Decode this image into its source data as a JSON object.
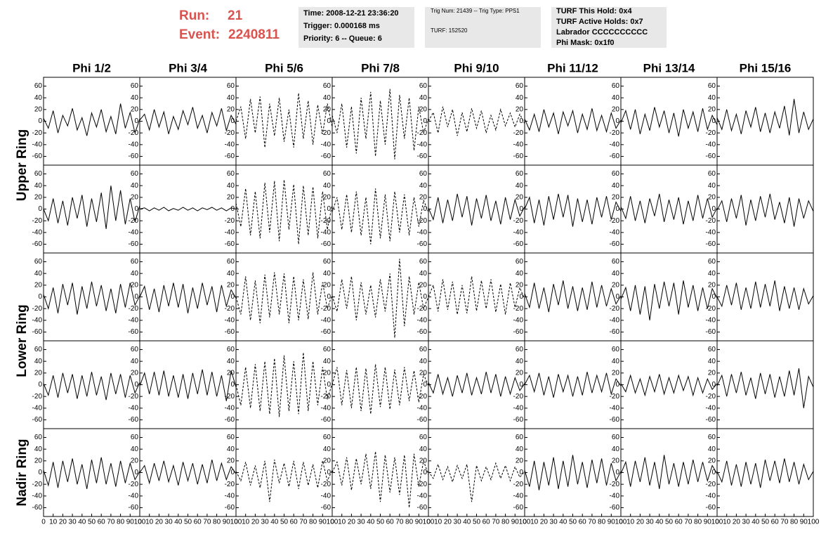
{
  "header": {
    "run_label": "Run:",
    "run": "21",
    "event_label": "Event:",
    "event": "2240811",
    "box1": [
      "Time: 2008-12-21 23:36:20",
      "Trigger: 0.000168 ms",
      "Priority: 6 -- Queue: 6"
    ],
    "box2": [
      "Trig Num: 21439 -- Trig Type: PPS1",
      "TURF: 152520"
    ],
    "box3": [
      "TURF This Hold: 0x4",
      "TURF Active Holds: 0x7",
      "Labrador CCCCCCCCCC",
      "Phi Mask: 0x1f0"
    ]
  },
  "chart_data": {
    "type": "line",
    "columns": [
      "Phi 1/2",
      "Phi 3/4",
      "Phi 5/6",
      "Phi 7/8",
      "Phi 9/10",
      "Phi 11/12",
      "Phi 13/14",
      "Phi 15/16"
    ],
    "ring_labels": [
      "Upper Ring",
      "Lower Ring",
      "Nadir Ring"
    ],
    "xlim": [
      0,
      100
    ],
    "ylim": [
      -75,
      75
    ],
    "xticks": [
      0,
      10,
      20,
      30,
      40,
      50,
      60,
      70,
      80,
      90,
      100
    ],
    "yticks": [
      -60,
      -40,
      -20,
      0,
      20,
      40,
      60
    ],
    "x": [
      0,
      5,
      10,
      15,
      20,
      25,
      30,
      35,
      40,
      45,
      50,
      55,
      60,
      65,
      70,
      75,
      80,
      85,
      90,
      95,
      100
    ],
    "color": "#000000",
    "series": [
      {
        "values": [
          5,
          -12,
          18,
          -20,
          10,
          -8,
          22,
          -15,
          6,
          -25,
          14,
          -10,
          20,
          -18,
          8,
          -22,
          30,
          -12,
          15,
          -20,
          4
        ],
        "dashed": false
      },
      {
        "values": [
          2,
          12,
          -15,
          20,
          -10,
          16,
          -22,
          8,
          -14,
          18,
          -6,
          24,
          -12,
          10,
          -20,
          15,
          -8,
          22,
          -16,
          10,
          -5
        ],
        "dashed": false
      },
      {
        "values": [
          0,
          25,
          -30,
          38,
          -20,
          42,
          -45,
          30,
          -25,
          40,
          -35,
          20,
          -45,
          48,
          -30,
          35,
          -40,
          28,
          -22,
          30,
          -10
        ],
        "dashed": true
      },
      {
        "values": [
          10,
          -20,
          30,
          -45,
          25,
          -55,
          40,
          -30,
          50,
          -60,
          35,
          -40,
          55,
          -65,
          45,
          -30,
          40,
          -50,
          25,
          -20,
          5
        ],
        "dashed": true
      },
      {
        "values": [
          0,
          15,
          -20,
          25,
          -10,
          20,
          -25,
          15,
          -18,
          22,
          -12,
          18,
          -20,
          10,
          -15,
          20,
          -8,
          14,
          -10,
          12,
          -4
        ],
        "dashed": true
      },
      {
        "values": [
          4,
          -15,
          12,
          -18,
          20,
          -10,
          14,
          -22,
          16,
          -8,
          18,
          -20,
          12,
          -14,
          22,
          -16,
          10,
          -18,
          14,
          -12,
          2
        ],
        "dashed": false
      },
      {
        "values": [
          -3,
          18,
          -14,
          20,
          -22,
          12,
          -16,
          24,
          -10,
          18,
          -20,
          14,
          -26,
          20,
          -12,
          16,
          -18,
          22,
          -14,
          10,
          -6
        ],
        "dashed": false
      },
      {
        "values": [
          6,
          -14,
          20,
          -16,
          12,
          -22,
          18,
          -10,
          24,
          -18,
          14,
          -20,
          16,
          -12,
          26,
          -24,
          38,
          -20,
          16,
          -14,
          4
        ],
        "dashed": false
      },
      {
        "values": [
          0,
          -20,
          18,
          -24,
          14,
          -28,
          20,
          -16,
          24,
          -30,
          18,
          -22,
          28,
          -34,
          40,
          -20,
          32,
          -26,
          18,
          -22,
          6
        ],
        "dashed": false
      },
      {
        "values": [
          0,
          2,
          -3,
          2,
          -2,
          3,
          -3,
          1,
          -2,
          3,
          -2,
          2,
          -3,
          2,
          -1,
          3,
          -2,
          2,
          -3,
          2,
          0
        ],
        "dashed": false
      },
      {
        "values": [
          10,
          -30,
          35,
          -45,
          30,
          -50,
          45,
          -40,
          48,
          -55,
          50,
          -35,
          42,
          -60,
          40,
          -45,
          38,
          -50,
          30,
          -35,
          8
        ],
        "dashed": true
      },
      {
        "values": [
          -5,
          20,
          -35,
          25,
          -40,
          30,
          -45,
          20,
          -60,
          35,
          -50,
          25,
          -55,
          30,
          -40,
          25,
          -45,
          20,
          -30,
          15,
          -5
        ],
        "dashed": true
      },
      {
        "values": [
          2,
          -18,
          20,
          -24,
          16,
          -20,
          26,
          -14,
          22,
          -28,
          18,
          -16,
          24,
          -20,
          14,
          -26,
          20,
          -18,
          16,
          -12,
          4
        ],
        "dashed": false
      },
      {
        "values": [
          0,
          20,
          -24,
          16,
          -28,
          22,
          -18,
          26,
          -14,
          24,
          -30,
          18,
          -22,
          16,
          -26,
          20,
          -14,
          22,
          -18,
          12,
          -4
        ],
        "dashed": false
      },
      {
        "values": [
          4,
          -16,
          22,
          -20,
          14,
          -24,
          18,
          -12,
          26,
          -22,
          16,
          -18,
          20,
          -26,
          14,
          -20,
          24,
          -16,
          18,
          -14,
          2
        ],
        "dashed": false
      },
      {
        "values": [
          -2,
          14,
          -22,
          18,
          -16,
          24,
          -28,
          16,
          -20,
          22,
          -14,
          26,
          -18,
          12,
          -24,
          20,
          -30,
          18,
          -16,
          14,
          -4
        ],
        "dashed": false
      },
      {
        "values": [
          4,
          -20,
          16,
          -28,
          22,
          -14,
          24,
          -30,
          18,
          -20,
          26,
          -16,
          20,
          -24,
          14,
          -28,
          22,
          -18,
          24,
          -14,
          2
        ],
        "dashed": false
      },
      {
        "values": [
          0,
          18,
          -22,
          14,
          -26,
          20,
          -16,
          24,
          -18,
          22,
          -28,
          16,
          -20,
          24,
          -14,
          18,
          -26,
          20,
          -16,
          12,
          -2
        ],
        "dashed": false
      },
      {
        "values": [
          0,
          -30,
          35,
          -40,
          28,
          -45,
          38,
          -35,
          42,
          -30,
          40,
          -45,
          35,
          -40,
          30,
          -38,
          42,
          -30,
          25,
          -20,
          4
        ],
        "dashed": true
      },
      {
        "values": [
          2,
          -25,
          30,
          -20,
          35,
          -40,
          25,
          -30,
          20,
          -35,
          30,
          -25,
          40,
          -70,
          65,
          -50,
          35,
          -30,
          25,
          -20,
          0
        ],
        "dashed": true
      },
      {
        "values": [
          0,
          20,
          -25,
          30,
          -22,
          26,
          -30,
          20,
          -28,
          35,
          -24,
          28,
          -20,
          30,
          -26,
          22,
          -30,
          24,
          -18,
          16,
          -4
        ],
        "dashed": true
      },
      {
        "values": [
          6,
          -18,
          24,
          -20,
          16,
          -26,
          22,
          -14,
          28,
          -20,
          18,
          -24,
          16,
          -22,
          26,
          -18,
          20,
          -16,
          14,
          -12,
          2
        ],
        "dashed": false
      },
      {
        "values": [
          -4,
          16,
          -24,
          20,
          -30,
          18,
          -40,
          22,
          -20,
          26,
          -16,
          24,
          -30,
          28,
          -18,
          20,
          -24,
          16,
          -20,
          14,
          -2
        ],
        "dashed": false
      },
      {
        "values": [
          0,
          -16,
          20,
          -14,
          24,
          -22,
          16,
          -20,
          26,
          -18,
          22,
          -16,
          28,
          -24,
          18,
          -20,
          16,
          -22,
          14,
          -12,
          2
        ],
        "dashed": false
      },
      {
        "values": [
          2,
          -18,
          16,
          -22,
          20,
          -14,
          18,
          -24,
          16,
          -20,
          22,
          -18,
          14,
          -26,
          20,
          -16,
          18,
          -22,
          16,
          -14,
          4
        ],
        "dashed": false
      },
      {
        "values": [
          -2,
          20,
          -16,
          22,
          -18,
          24,
          -20,
          16,
          -22,
          18,
          -24,
          20,
          -16,
          26,
          -18,
          22,
          -20,
          16,
          -28,
          24,
          -4
        ],
        "dashed": false
      },
      {
        "values": [
          0,
          -35,
          30,
          -40,
          35,
          -45,
          40,
          -50,
          45,
          -55,
          50,
          -45,
          40,
          -50,
          55,
          -45,
          40,
          -35,
          30,
          -25,
          2
        ],
        "dashed": true
      },
      {
        "values": [
          0,
          30,
          -35,
          25,
          -40,
          30,
          -45,
          28,
          -50,
          35,
          -38,
          30,
          -42,
          26,
          -35,
          30,
          -28,
          24,
          -30,
          18,
          -2
        ],
        "dashed": true
      },
      {
        "values": [
          4,
          -14,
          18,
          -16,
          12,
          -20,
          16,
          -14,
          20,
          -18,
          12,
          -16,
          22,
          -14,
          18,
          -20,
          14,
          -16,
          12,
          -10,
          2
        ],
        "dashed": false
      },
      {
        "values": [
          0,
          16,
          -12,
          20,
          -18,
          14,
          -22,
          18,
          -12,
          16,
          -20,
          14,
          -18,
          22,
          -14,
          16,
          -12,
          20,
          -16,
          10,
          -2
        ],
        "dashed": false
      },
      {
        "values": [
          2,
          -12,
          16,
          -14,
          10,
          -18,
          14,
          -12,
          18,
          -16,
          12,
          -14,
          16,
          -10,
          14,
          -18,
          12,
          -14,
          10,
          -8,
          2
        ],
        "dashed": false
      },
      {
        "values": [
          -2,
          16,
          -20,
          18,
          -14,
          22,
          -18,
          12,
          -24,
          20,
          -16,
          18,
          -22,
          14,
          -20,
          24,
          -18,
          28,
          -40,
          14,
          -4
        ],
        "dashed": false
      },
      {
        "values": [
          4,
          -22,
          18,
          -26,
          20,
          -16,
          24,
          -20,
          14,
          -28,
          22,
          -18,
          26,
          -20,
          16,
          -24,
          20,
          -18,
          16,
          -12,
          2
        ],
        "dashed": false
      },
      {
        "values": [
          0,
          12,
          -18,
          16,
          -14,
          20,
          -16,
          12,
          -22,
          18,
          -14,
          16,
          -20,
          14,
          -18,
          22,
          -14,
          16,
          -12,
          10,
          -2
        ],
        "dashed": false
      },
      {
        "values": [
          2,
          -14,
          18,
          -22,
          12,
          -26,
          20,
          -50,
          22,
          -18,
          16,
          -24,
          20,
          -28,
          18,
          -22,
          14,
          -26,
          20,
          -14,
          4
        ],
        "dashed": true
      },
      {
        "values": [
          0,
          18,
          -22,
          26,
          -30,
          24,
          -20,
          32,
          -28,
          36,
          -50,
          30,
          -34,
          26,
          -38,
          30,
          -60,
          32,
          -24,
          20,
          -4
        ],
        "dashed": true
      },
      {
        "values": [
          2,
          -10,
          14,
          -12,
          10,
          -16,
          12,
          -10,
          14,
          -50,
          12,
          -14,
          10,
          -12,
          16,
          -10,
          12,
          -14,
          10,
          -8,
          2
        ],
        "dashed": true
      },
      {
        "values": [
          4,
          -24,
          20,
          -30,
          18,
          -22,
          26,
          -28,
          20,
          -24,
          30,
          -20,
          18,
          -26,
          22,
          -18,
          24,
          -22,
          16,
          -14,
          2
        ],
        "dashed": false
      },
      {
        "values": [
          -2,
          18,
          -24,
          20,
          -16,
          26,
          -22,
          18,
          -28,
          30,
          -20,
          16,
          -24,
          18,
          -20,
          22,
          -16,
          18,
          -14,
          12,
          -2
        ],
        "dashed": false
      },
      {
        "values": [
          2,
          -16,
          20,
          -22,
          14,
          -24,
          18,
          -20,
          16,
          -26,
          22,
          -14,
          20,
          -18,
          24,
          -16,
          18,
          -20,
          14,
          -12,
          2
        ],
        "dashed": false
      }
    ]
  }
}
